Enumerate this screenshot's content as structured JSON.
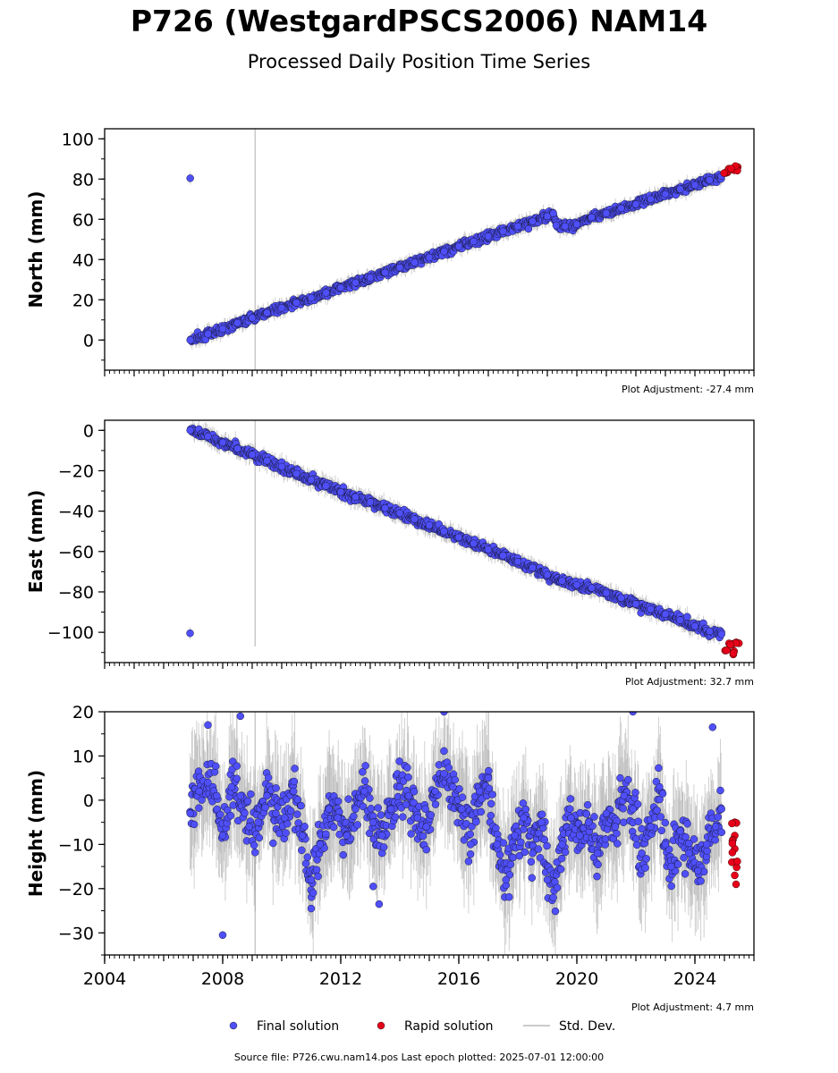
{
  "title": "P726 (WestgardPSCS2006) NAM14",
  "subtitle": "Processed Daily Position Time Series",
  "source_line": "Source file: P726.cwu.nam14.pos  Last epoch plotted: 2025-07-01 12:00:00",
  "colors": {
    "final": "#4f4ffa",
    "rapid": "#e8001a",
    "stddev": "#b8b8b8"
  },
  "chart_data": [
    {
      "type": "scatter",
      "ylabel": "North (mm)",
      "xlim": [
        2004.0,
        2026.0
      ],
      "ylim": [
        -15,
        105
      ],
      "yticks": [
        0,
        20,
        40,
        60,
        80,
        100
      ],
      "plot_adjustment": "Plot Adjustment: -27.4 mm",
      "grid": false,
      "outlier_line_x": 2009.1,
      "series": [
        {
          "name": "Final solution",
          "points": [
            [
              2006.9,
              0
            ],
            [
              2007.5,
              3
            ],
            [
              2008.0,
              5.5
            ],
            [
              2008.5,
              8.5
            ],
            [
              2009.0,
              11
            ],
            [
              2009.5,
              13.5
            ],
            [
              2010.0,
              16
            ],
            [
              2010.5,
              18.5
            ],
            [
              2011.0,
              21
            ],
            [
              2011.5,
              23.5
            ],
            [
              2012.0,
              26
            ],
            [
              2012.5,
              28.5
            ],
            [
              2013.0,
              31
            ],
            [
              2013.5,
              33.5
            ],
            [
              2014.0,
              36
            ],
            [
              2014.5,
              38.5
            ],
            [
              2015.0,
              41
            ],
            [
              2015.5,
              44
            ],
            [
              2016.0,
              46.5
            ],
            [
              2016.5,
              49
            ],
            [
              2017.0,
              51.5
            ],
            [
              2017.5,
              54
            ],
            [
              2018.0,
              56.5
            ],
            [
              2018.5,
              59
            ],
            [
              2019.0,
              61.5
            ],
            [
              2019.2,
              63
            ],
            [
              2019.3,
              57
            ],
            [
              2019.6,
              56.5
            ],
            [
              2020.0,
              57.5
            ],
            [
              2020.5,
              61
            ],
            [
              2021.0,
              63
            ],
            [
              2021.5,
              65.5
            ],
            [
              2022.0,
              67.5
            ],
            [
              2022.5,
              70
            ],
            [
              2023.0,
              72.5
            ],
            [
              2023.5,
              75
            ],
            [
              2024.0,
              77
            ],
            [
              2024.5,
              79.5
            ],
            [
              2024.9,
              81.5
            ]
          ]
        },
        {
          "name": "Rapid solution",
          "points": [
            [
              2025.05,
              83
            ],
            [
              2025.2,
              85
            ],
            [
              2025.35,
              84.5
            ],
            [
              2025.45,
              86
            ]
          ]
        }
      ]
    },
    {
      "type": "scatter",
      "ylabel": "East (mm)",
      "xlim": [
        2004.0,
        2026.0
      ],
      "ylim": [
        -115,
        5
      ],
      "yticks": [
        0,
        -20,
        -40,
        -60,
        -80,
        -100
      ],
      "plot_adjustment": "Plot Adjustment: 32.7 mm",
      "grid": false,
      "outlier_line_x": 2009.1,
      "series": [
        {
          "name": "Final solution",
          "points": [
            [
              2006.9,
              0
            ],
            [
              2007.5,
              -3
            ],
            [
              2008.0,
              -6
            ],
            [
              2008.5,
              -9
            ],
            [
              2009.0,
              -12
            ],
            [
              2009.5,
              -15
            ],
            [
              2010.0,
              -18
            ],
            [
              2010.5,
              -21.5
            ],
            [
              2011.0,
              -24.5
            ],
            [
              2011.5,
              -27.5
            ],
            [
              2012.0,
              -30.5
            ],
            [
              2012.5,
              -33
            ],
            [
              2013.0,
              -35.5
            ],
            [
              2013.5,
              -38.5
            ],
            [
              2014.0,
              -41
            ],
            [
              2014.5,
              -44
            ],
            [
              2015.0,
              -47
            ],
            [
              2015.5,
              -50
            ],
            [
              2016.0,
              -53
            ],
            [
              2016.5,
              -56
            ],
            [
              2017.0,
              -59
            ],
            [
              2017.5,
              -62
            ],
            [
              2018.0,
              -65
            ],
            [
              2018.5,
              -68
            ],
            [
              2019.0,
              -71.5
            ],
            [
              2019.5,
              -74.5
            ],
            [
              2020.0,
              -76.5
            ],
            [
              2020.5,
              -78
            ],
            [
              2021.0,
              -80.5
            ],
            [
              2021.5,
              -83
            ],
            [
              2022.0,
              -86
            ],
            [
              2022.5,
              -88.5
            ],
            [
              2023.0,
              -91
            ],
            [
              2023.5,
              -94
            ],
            [
              2024.0,
              -97
            ],
            [
              2024.5,
              -99.5
            ],
            [
              2024.9,
              -101
            ]
          ]
        },
        {
          "name": "Rapid solution",
          "points": [
            [
              2025.05,
              -109
            ],
            [
              2025.2,
              -106
            ],
            [
              2025.3,
              -111
            ],
            [
              2025.4,
              -105
            ]
          ]
        }
      ]
    },
    {
      "type": "scatter",
      "ylabel": "Height (mm)",
      "xlim": [
        2004.0,
        2026.0
      ],
      "ylim": [
        -35,
        20
      ],
      "yticks": [
        -30,
        -20,
        -10,
        0,
        10,
        20
      ],
      "xticks": [
        "2004",
        "2008",
        "2012",
        "2016",
        "2020",
        "2024"
      ],
      "xtick_values": [
        2004,
        2008,
        2012,
        2016,
        2020,
        2024
      ],
      "plot_adjustment": "Plot Adjustment: 4.7 mm",
      "grid": false,
      "outlier_line_x": 2009.1,
      "series": [
        {
          "name": "Final solution",
          "points": [
            [
              2006.9,
              -3
            ],
            [
              2007.2,
              2
            ],
            [
              2007.5,
              4
            ],
            [
              2007.8,
              1
            ],
            [
              2008.0,
              -8
            ],
            [
              2008.3,
              3
            ],
            [
              2008.6,
              1
            ],
            [
              2008.9,
              -6
            ],
            [
              2009.2,
              -5
            ],
            [
              2009.5,
              1
            ],
            [
              2009.8,
              -3
            ],
            [
              2010.1,
              -4
            ],
            [
              2010.4,
              2
            ],
            [
              2010.7,
              -8
            ],
            [
              2011.0,
              -18
            ],
            [
              2011.3,
              -10
            ],
            [
              2011.6,
              -2
            ],
            [
              2011.9,
              -4
            ],
            [
              2012.2,
              -8
            ],
            [
              2012.5,
              -2
            ],
            [
              2012.8,
              2
            ],
            [
              2013.1,
              -5
            ],
            [
              2013.4,
              -8
            ],
            [
              2013.7,
              -2
            ],
            [
              2014.0,
              3
            ],
            [
              2014.3,
              1
            ],
            [
              2014.6,
              -4
            ],
            [
              2014.9,
              -6
            ],
            [
              2015.2,
              2
            ],
            [
              2015.5,
              6
            ],
            [
              2015.8,
              3
            ],
            [
              2016.1,
              -2
            ],
            [
              2016.4,
              -10
            ],
            [
              2016.7,
              2
            ],
            [
              2017.0,
              5
            ],
            [
              2017.3,
              -10
            ],
            [
              2017.6,
              -18
            ],
            [
              2017.9,
              -8
            ],
            [
              2018.2,
              -4
            ],
            [
              2018.5,
              -12
            ],
            [
              2018.8,
              -5
            ],
            [
              2019.0,
              -18
            ],
            [
              2019.2,
              -22
            ],
            [
              2019.5,
              -10
            ],
            [
              2019.8,
              -4
            ],
            [
              2020.1,
              -8
            ],
            [
              2020.4,
              -5
            ],
            [
              2020.7,
              -12
            ],
            [
              2021.0,
              -3
            ],
            [
              2021.3,
              -6
            ],
            [
              2021.6,
              1
            ],
            [
              2021.9,
              -2
            ],
            [
              2022.2,
              -12
            ],
            [
              2022.5,
              -6
            ],
            [
              2022.8,
              3
            ],
            [
              2023.0,
              -10
            ],
            [
              2023.2,
              -15
            ],
            [
              2023.5,
              -7
            ],
            [
              2023.8,
              -12
            ],
            [
              2024.1,
              -16
            ],
            [
              2024.4,
              -10
            ],
            [
              2024.7,
              -6
            ],
            [
              2024.9,
              -2
            ]
          ]
        },
        {
          "name": "Rapid solution",
          "points": [
            [
              2025.35,
              -5
            ],
            [
              2025.35,
              -8
            ],
            [
              2025.35,
              -11
            ],
            [
              2025.35,
              -14
            ],
            [
              2025.35,
              -17
            ]
          ]
        }
      ]
    }
  ],
  "legend": {
    "items": [
      {
        "label": "Final solution",
        "marker": "circle-blue"
      },
      {
        "label": "Rapid solution",
        "marker": "circle-red"
      },
      {
        "label": "Std. Dev.",
        "marker": "line-gray"
      }
    ],
    "placement": "bottom-center"
  }
}
